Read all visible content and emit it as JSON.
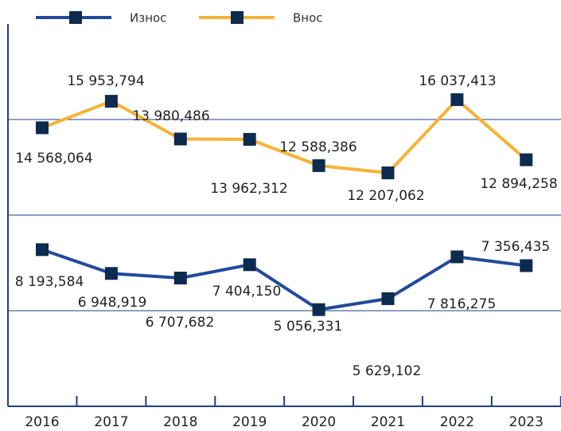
{
  "chart_data": {
    "type": "line",
    "categories": [
      "2016",
      "2017",
      "2018",
      "2019",
      "2020",
      "2021",
      "2022",
      "2023"
    ],
    "series": [
      {
        "name": "Износ",
        "color": "#234a9b",
        "values": [
          8193584,
          6948919,
          6707682,
          7404150,
          5056331,
          5629102,
          7816275,
          7356435
        ],
        "value_labels": [
          "8 193,584",
          "6 948,919",
          "6 707,682",
          "7 404,150",
          "5 056,331",
          "5 629,102",
          "7 816,275",
          "7 356,435"
        ]
      },
      {
        "name": "Внос",
        "color": "#f5b335",
        "values": [
          14568064,
          15953794,
          13980486,
          13962312,
          12588386,
          12207062,
          16037413,
          12894258
        ],
        "value_labels": [
          "14 568,064",
          "15 953,794",
          "13 980,486",
          "13 962,312",
          "12 588,386",
          "12 207,062",
          "16 037,413",
          "12 894,258"
        ]
      }
    ],
    "marker_color": "#0d2a4f",
    "ylim": [
      0,
      20000000
    ],
    "yticks": [
      5000000,
      10000000,
      15000000
    ],
    "grid": true,
    "legend": "top"
  }
}
